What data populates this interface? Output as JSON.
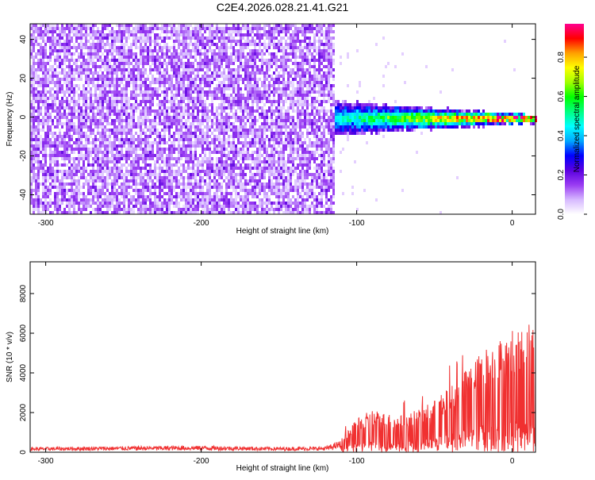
{
  "title": "C2E4.2026.028.21.41.G21",
  "chart_data": [
    {
      "type": "heatmap",
      "name": "spectrogram",
      "xlabel": "Height of straight line (km)",
      "ylabel": "Frequency (Hz)",
      "xlim": [
        -310,
        15
      ],
      "ylim": [
        -50,
        48
      ],
      "xticks": [
        -300,
        -200,
        -100,
        0
      ],
      "xtick_labels": [
        "-300",
        "-200",
        "-100",
        "0"
      ],
      "yticks": [
        -40,
        -20,
        0,
        20,
        40
      ],
      "ytick_labels": [
        "-40",
        "-20",
        "0",
        "20",
        "40"
      ],
      "noise_region_x": [
        -310,
        -115
      ],
      "signal_region_x": [
        -115,
        15
      ],
      "signal_center_frequency": 0,
      "grid": false,
      "colorbar": {
        "label": "Normalized spectral amplitude",
        "range": [
          0.0,
          0.97
        ],
        "ticks": [
          0.0,
          0.2,
          0.4,
          0.6,
          0.8
        ],
        "tick_labels": [
          "0.0",
          "0.2",
          "0.4",
          "0.6",
          "0.8"
        ],
        "colormap": [
          "#ffffff",
          "#d6b8ff",
          "#9a3cf2",
          "#5a00e0",
          "#0000ff",
          "#00a8ff",
          "#00ffff",
          "#00ff80",
          "#00ff00",
          "#a0ff00",
          "#ffff00",
          "#ffa000",
          "#ff0000",
          "#ff0090"
        ]
      }
    },
    {
      "type": "line",
      "name": "snr",
      "xlabel": "Height of straight line (km)",
      "ylabel": "SNR (10 * v/v)",
      "xlim": [
        -310,
        15
      ],
      "ylim": [
        0,
        9600
      ],
      "xticks": [
        -300,
        -200,
        -100,
        0
      ],
      "xtick_labels": [
        "-300",
        "-200",
        "-100",
        "0"
      ],
      "yticks": [
        0,
        2000,
        4000,
        6000,
        8000
      ],
      "ytick_labels": [
        "0",
        "2000",
        "4000",
        "6000",
        "8000"
      ],
      "color": "#f03030",
      "grid": false,
      "envelope": {
        "x": [
          -310,
          -250,
          -200,
          -150,
          -120,
          -110,
          -100,
          -90,
          -80,
          -70,
          -60,
          -50,
          -40,
          -30,
          -20,
          -15,
          -10,
          -5,
          0,
          5,
          10,
          15
        ],
        "y": [
          250,
          300,
          330,
          260,
          280,
          600,
          1500,
          2000,
          1800,
          1700,
          2000,
          2400,
          3000,
          3800,
          4600,
          5000,
          5200,
          5400,
          5200,
          5600,
          6200,
          6000
        ]
      }
    }
  ]
}
